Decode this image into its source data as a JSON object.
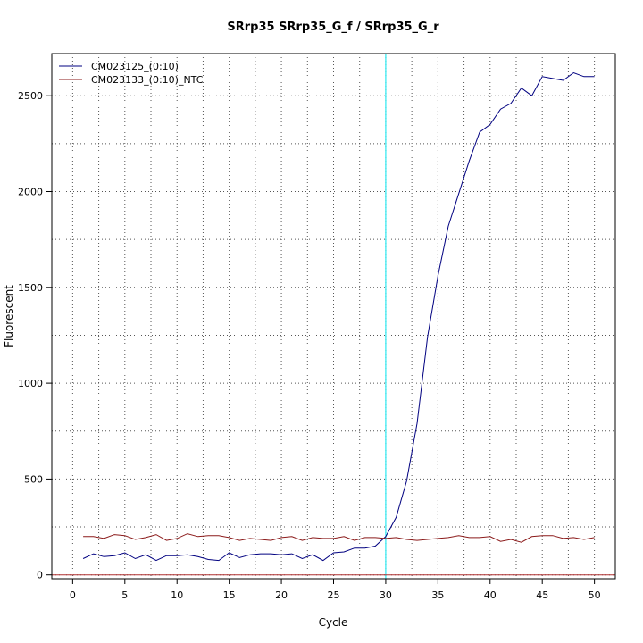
{
  "chart_data": {
    "type": "line",
    "title": "SRrp35  SRrp35_G_f / SRrp35_G_r",
    "xlabel": "Cycle",
    "ylabel": "Fluorescent",
    "xlim": [
      -2,
      52
    ],
    "ylim": [
      -20,
      2720
    ],
    "x_ticks": [
      0,
      5,
      10,
      15,
      20,
      25,
      30,
      35,
      40,
      45,
      50
    ],
    "y_ticks": [
      0,
      500,
      1000,
      1500,
      2000,
      2500
    ],
    "x_minor_grid": [
      2.5,
      7.5,
      12.5,
      17.5,
      22.5,
      27.5,
      32.5,
      37.5,
      42.5,
      47.5
    ],
    "y_minor_grid": [
      250,
      750,
      1250,
      1750,
      2250
    ],
    "grid": true,
    "legend_position": "top-left",
    "threshold_line": {
      "axis": "x",
      "value": 30,
      "color": "#00e5ee"
    },
    "baseline_line": {
      "axis": "y",
      "value": 0,
      "color": "#b03030"
    },
    "x": [
      1,
      2,
      3,
      4,
      5,
      6,
      7,
      8,
      9,
      10,
      11,
      12,
      13,
      14,
      15,
      16,
      17,
      18,
      19,
      20,
      21,
      22,
      23,
      24,
      25,
      26,
      27,
      28,
      29,
      30,
      31,
      32,
      33,
      34,
      35,
      36,
      37,
      38,
      39,
      40,
      41,
      42,
      43,
      44,
      45,
      46,
      47,
      48,
      49,
      50
    ],
    "series": [
      {
        "name": "CM023125_(0:10)",
        "color": "#000080",
        "values": [
          85,
          110,
          95,
          100,
          115,
          85,
          105,
          75,
          100,
          100,
          105,
          95,
          80,
          75,
          115,
          90,
          105,
          110,
          110,
          105,
          110,
          85,
          105,
          75,
          115,
          120,
          140,
          140,
          150,
          200,
          300,
          490,
          790,
          1240,
          1560,
          1820,
          1990,
          2160,
          2310,
          2350,
          2430,
          2460,
          2540,
          2500,
          2600,
          2590,
          2580,
          2620,
          2600,
          2600
        ]
      },
      {
        "name": "CM023133_(0:10)_NTC",
        "color": "#8b1a1a",
        "values": [
          200,
          200,
          190,
          210,
          205,
          185,
          195,
          210,
          180,
          190,
          215,
          200,
          205,
          205,
          195,
          180,
          190,
          185,
          180,
          195,
          200,
          180,
          195,
          190,
          190,
          200,
          180,
          195,
          195,
          190,
          195,
          185,
          180,
          185,
          190,
          195,
          205,
          195,
          195,
          200,
          175,
          185,
          170,
          200,
          205,
          205,
          190,
          195,
          185,
          195
        ]
      }
    ]
  }
}
